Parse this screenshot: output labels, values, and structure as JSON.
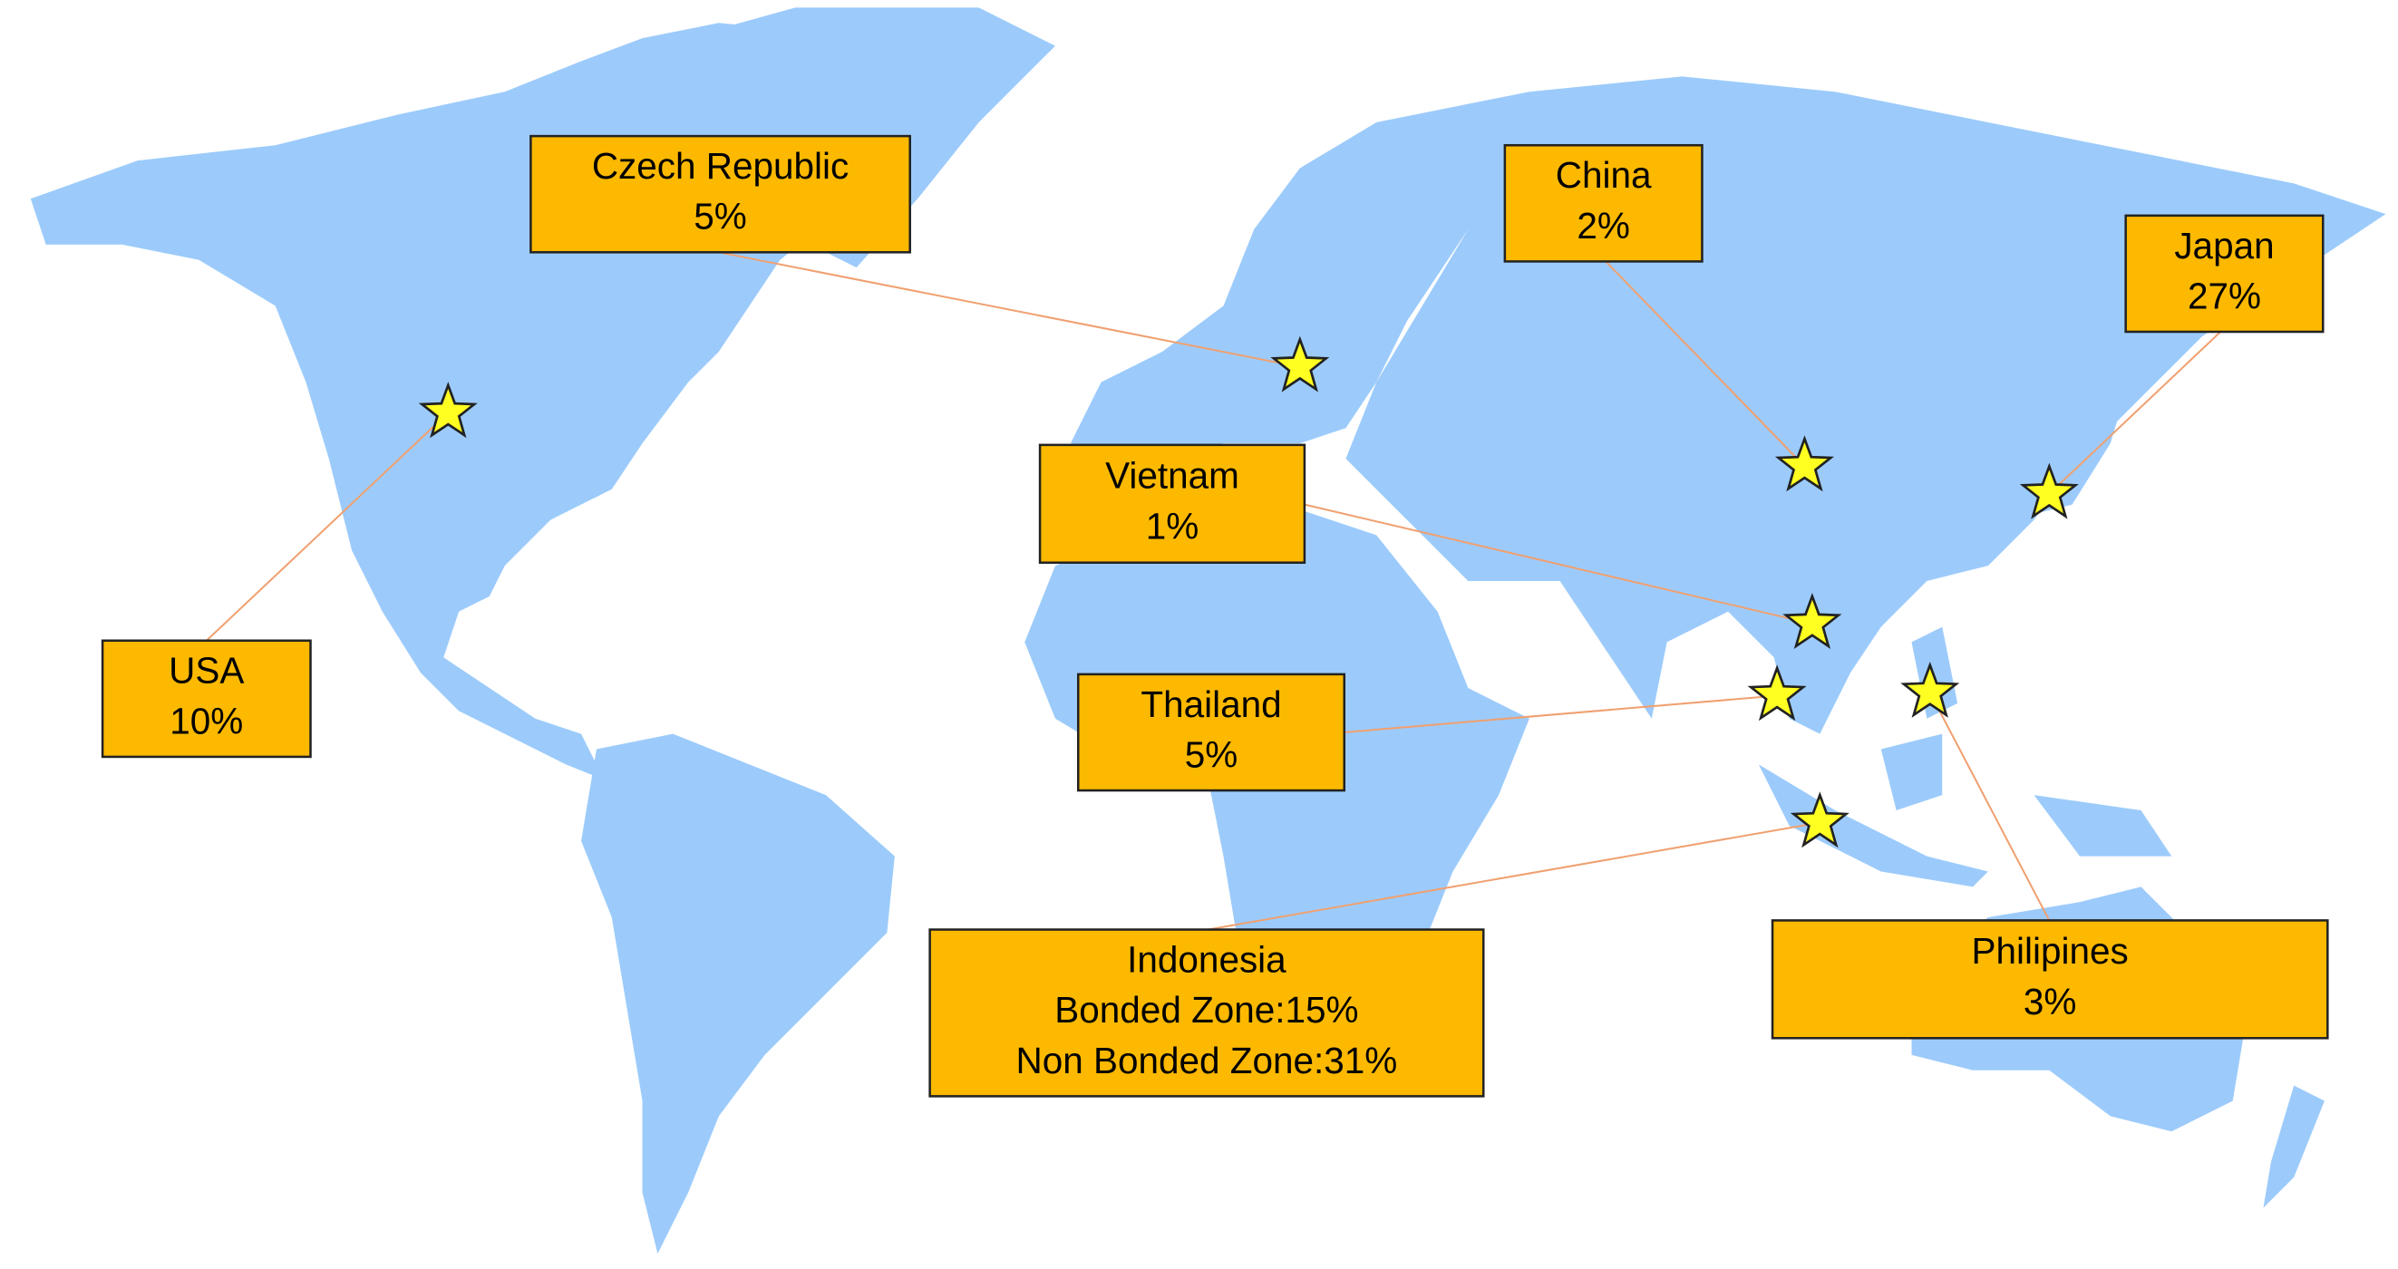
{
  "locations": [
    {
      "lines": [
        "Czech Republic",
        "5%"
      ]
    },
    {
      "lines": [
        "China",
        "2%"
      ]
    },
    {
      "lines": [
        "Japan",
        "27%"
      ]
    },
    {
      "lines": [
        "USA",
        "10%"
      ]
    },
    {
      "lines": [
        "Vietnam",
        "1%"
      ]
    },
    {
      "lines": [
        "Thailand",
        "5%"
      ]
    },
    {
      "lines": [
        "Indonesia",
        "Bonded Zone:15%",
        "Non Bonded Zone:31%"
      ]
    },
    {
      "lines": [
        "Philipines",
        "3%"
      ]
    }
  ]
}
